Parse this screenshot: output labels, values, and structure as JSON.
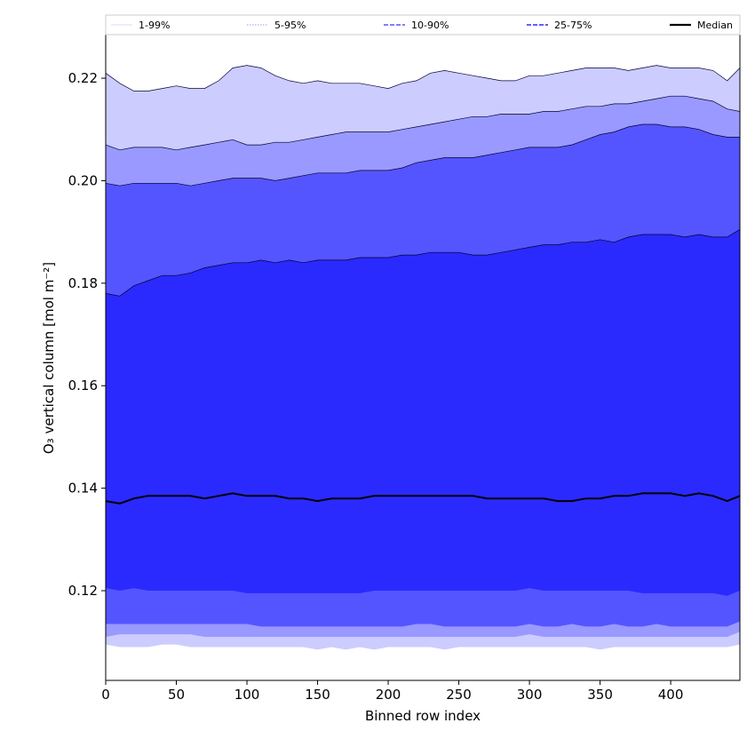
{
  "chart_data": {
    "type": "area",
    "title": "",
    "xlabel": "Binned row index",
    "ylabel": "O₃ vertical column [mol m⁻²]",
    "xlim": [
      0,
      449
    ],
    "ylim": [
      0.1025,
      0.2285
    ],
    "xticks": [
      0,
      50,
      100,
      150,
      200,
      250,
      300,
      350,
      400
    ],
    "yticks": [
      0.12,
      0.14,
      0.16,
      0.18,
      0.2,
      0.22
    ],
    "ytick_labels": [
      "0.12",
      "0.14",
      "0.16",
      "0.18",
      "0.20",
      "0.22"
    ],
    "grid": false,
    "legend_position": "top, above plot, single row",
    "x": [
      0,
      10,
      20,
      30,
      40,
      50,
      60,
      70,
      80,
      90,
      100,
      110,
      120,
      130,
      140,
      150,
      160,
      170,
      180,
      190,
      200,
      210,
      220,
      230,
      240,
      250,
      260,
      270,
      280,
      290,
      300,
      310,
      320,
      330,
      340,
      350,
      360,
      370,
      380,
      390,
      400,
      410,
      420,
      430,
      440,
      449
    ],
    "bands": [
      {
        "name": "1-99%",
        "color": "#ccccff",
        "upper": [
          0.221,
          0.219,
          0.2175,
          0.2175,
          0.218,
          0.2185,
          0.218,
          0.218,
          0.2195,
          0.222,
          0.2225,
          0.222,
          0.2205,
          0.2195,
          0.219,
          0.2195,
          0.219,
          0.219,
          0.219,
          0.2185,
          0.218,
          0.219,
          0.2195,
          0.221,
          0.2215,
          0.221,
          0.2205,
          0.22,
          0.2195,
          0.2195,
          0.2205,
          0.2205,
          0.221,
          0.2215,
          0.222,
          0.222,
          0.222,
          0.2215,
          0.222,
          0.2225,
          0.222,
          0.222,
          0.222,
          0.2215,
          0.2195,
          0.222
        ],
        "lower": [
          0.1095,
          0.109,
          0.109,
          0.109,
          0.1095,
          0.1095,
          0.109,
          0.109,
          0.109,
          0.109,
          0.109,
          0.109,
          0.109,
          0.109,
          0.109,
          0.1085,
          0.109,
          0.1085,
          0.109,
          0.1085,
          0.109,
          0.109,
          0.109,
          0.109,
          0.1085,
          0.109,
          0.109,
          0.109,
          0.109,
          0.109,
          0.109,
          0.109,
          0.109,
          0.109,
          0.109,
          0.1085,
          0.109,
          0.109,
          0.109,
          0.109,
          0.109,
          0.109,
          0.109,
          0.109,
          0.109,
          0.1095
        ]
      },
      {
        "name": "5-95%",
        "color": "#9999ff",
        "upper": [
          0.207,
          0.206,
          0.2065,
          0.2065,
          0.2065,
          0.206,
          0.2065,
          0.207,
          0.2075,
          0.208,
          0.207,
          0.207,
          0.2075,
          0.2075,
          0.208,
          0.2085,
          0.209,
          0.2095,
          0.2095,
          0.2095,
          0.2095,
          0.21,
          0.2105,
          0.211,
          0.2115,
          0.212,
          0.2125,
          0.2125,
          0.213,
          0.213,
          0.213,
          0.2135,
          0.2135,
          0.214,
          0.2145,
          0.2145,
          0.215,
          0.215,
          0.2155,
          0.216,
          0.2165,
          0.2165,
          0.216,
          0.2155,
          0.214,
          0.2135
        ],
        "lower": [
          0.111,
          0.1115,
          0.1115,
          0.1115,
          0.1115,
          0.1115,
          0.1115,
          0.111,
          0.111,
          0.111,
          0.111,
          0.111,
          0.111,
          0.111,
          0.111,
          0.111,
          0.111,
          0.111,
          0.111,
          0.111,
          0.111,
          0.111,
          0.111,
          0.111,
          0.111,
          0.111,
          0.111,
          0.111,
          0.111,
          0.111,
          0.1115,
          0.111,
          0.111,
          0.111,
          0.111,
          0.111,
          0.111,
          0.111,
          0.111,
          0.111,
          0.111,
          0.111,
          0.111,
          0.111,
          0.111,
          0.112
        ]
      },
      {
        "name": "10-90%",
        "color": "#5555ff",
        "upper": [
          0.1995,
          0.199,
          0.1995,
          0.1995,
          0.1995,
          0.1995,
          0.199,
          0.1995,
          0.2,
          0.2005,
          0.2005,
          0.2005,
          0.2,
          0.2005,
          0.201,
          0.2015,
          0.2015,
          0.2015,
          0.202,
          0.202,
          0.202,
          0.2025,
          0.2035,
          0.204,
          0.2045,
          0.2045,
          0.2045,
          0.205,
          0.2055,
          0.206,
          0.2065,
          0.2065,
          0.2065,
          0.207,
          0.208,
          0.209,
          0.2095,
          0.2105,
          0.211,
          0.211,
          0.2105,
          0.2105,
          0.21,
          0.209,
          0.2085,
          0.2085
        ],
        "lower": [
          0.1135,
          0.1135,
          0.1135,
          0.1135,
          0.1135,
          0.1135,
          0.1135,
          0.1135,
          0.1135,
          0.1135,
          0.1135,
          0.113,
          0.113,
          0.113,
          0.113,
          0.113,
          0.113,
          0.113,
          0.113,
          0.113,
          0.113,
          0.113,
          0.1135,
          0.1135,
          0.113,
          0.113,
          0.113,
          0.113,
          0.113,
          0.113,
          0.1135,
          0.113,
          0.113,
          0.1135,
          0.113,
          0.113,
          0.1135,
          0.113,
          0.113,
          0.1135,
          0.113,
          0.113,
          0.113,
          0.113,
          0.113,
          0.114
        ]
      },
      {
        "name": "25-75%",
        "color": "#2a2aff",
        "upper": [
          0.178,
          0.1775,
          0.1795,
          0.1805,
          0.1815,
          0.1815,
          0.182,
          0.183,
          0.1835,
          0.184,
          0.184,
          0.1845,
          0.184,
          0.1845,
          0.184,
          0.1845,
          0.1845,
          0.1845,
          0.185,
          0.185,
          0.185,
          0.1855,
          0.1855,
          0.186,
          0.186,
          0.186,
          0.1855,
          0.1855,
          0.186,
          0.1865,
          0.187,
          0.1875,
          0.1875,
          0.188,
          0.188,
          0.1885,
          0.188,
          0.189,
          0.1895,
          0.1895,
          0.1895,
          0.189,
          0.1895,
          0.189,
          0.189,
          0.1905
        ],
        "lower": [
          0.1205,
          0.12,
          0.1205,
          0.12,
          0.12,
          0.12,
          0.12,
          0.12,
          0.12,
          0.12,
          0.1195,
          0.1195,
          0.1195,
          0.1195,
          0.1195,
          0.1195,
          0.1195,
          0.1195,
          0.1195,
          0.12,
          0.12,
          0.12,
          0.12,
          0.12,
          0.12,
          0.12,
          0.12,
          0.12,
          0.12,
          0.12,
          0.1205,
          0.12,
          0.12,
          0.12,
          0.12,
          0.12,
          0.12,
          0.12,
          0.1195,
          0.1195,
          0.1195,
          0.1195,
          0.1195,
          0.1195,
          0.119,
          0.12
        ]
      }
    ],
    "series": [
      {
        "name": "Median",
        "color": "#000000",
        "values": [
          0.1375,
          0.137,
          0.138,
          0.1385,
          0.1385,
          0.1385,
          0.1385,
          0.138,
          0.1385,
          0.139,
          0.1385,
          0.1385,
          0.1385,
          0.138,
          0.138,
          0.1375,
          0.138,
          0.138,
          0.138,
          0.1385,
          0.1385,
          0.1385,
          0.1385,
          0.1385,
          0.1385,
          0.1385,
          0.1385,
          0.138,
          0.138,
          0.138,
          0.138,
          0.138,
          0.1375,
          0.1375,
          0.138,
          0.138,
          0.1385,
          0.1385,
          0.139,
          0.139,
          0.139,
          0.1385,
          0.139,
          0.1385,
          0.1375,
          0.1385
        ]
      }
    ],
    "legend": [
      {
        "label": "1-99%",
        "color": "#ccccff",
        "style": "solid-thin"
      },
      {
        "label": "5-95%",
        "color": "#9999ff",
        "style": "dotted"
      },
      {
        "label": "10-90%",
        "color": "#5555ff",
        "style": "dashed"
      },
      {
        "label": "25-75%",
        "color": "#2a2aff",
        "style": "dashed"
      },
      {
        "label": "Median",
        "color": "#000000",
        "style": "solid-thick"
      }
    ]
  }
}
